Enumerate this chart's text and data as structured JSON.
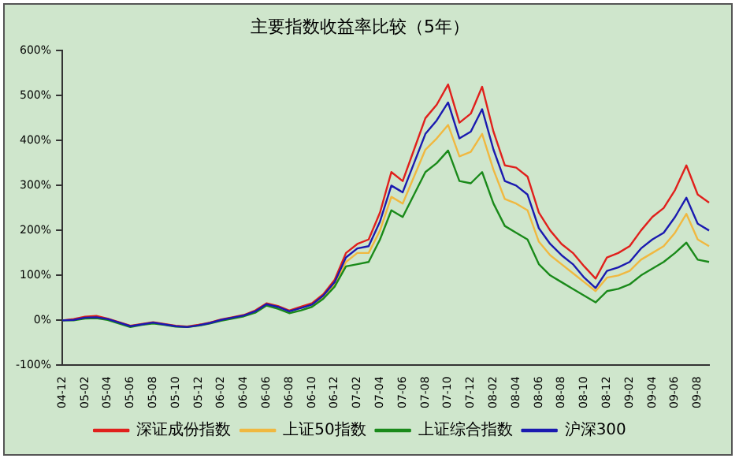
{
  "chart_data": {
    "type": "line",
    "title": "主要指数收益率比较（5年）",
    "categories": [
      "04-12",
      null,
      "05-02",
      null,
      "05-04",
      null,
      "05-06",
      null,
      "05-08",
      null,
      "05-10",
      null,
      "05-12",
      null,
      "06-02",
      null,
      "06-04",
      null,
      "06-06",
      null,
      "06-08",
      null,
      "06-10",
      null,
      "06-12",
      null,
      "07-02",
      null,
      "07-04",
      null,
      "07-06",
      null,
      "07-08",
      null,
      "07-10",
      null,
      "07-12",
      null,
      "08-02",
      null,
      "08-04",
      null,
      "08-06",
      null,
      "08-08",
      null,
      "08-10",
      null,
      "08-12",
      null,
      "09-02",
      null,
      "09-04",
      null,
      "09-06",
      null,
      "09-08",
      null
    ],
    "series": [
      {
        "name": "深证成份指数",
        "color": "#e0201c",
        "values": [
          0,
          3,
          8,
          10,
          4,
          -4,
          -12,
          -8,
          -4,
          -8,
          -12,
          -14,
          -10,
          -5,
          2,
          7,
          12,
          22,
          38,
          32,
          22,
          30,
          38,
          58,
          90,
          150,
          170,
          180,
          240,
          330,
          310,
          380,
          450,
          480,
          525,
          440,
          460,
          520,
          420,
          345,
          340,
          320,
          240,
          200,
          170,
          150,
          120,
          93,
          140,
          150,
          165,
          200,
          230,
          250,
          290,
          345,
          280,
          262
        ]
      },
      {
        "name": "上证50指数",
        "color": "#f0b840",
        "values": [
          null,
          null,
          null,
          null,
          null,
          null,
          null,
          null,
          null,
          null,
          null,
          null,
          null,
          null,
          null,
          null,
          null,
          null,
          null,
          null,
          null,
          null,
          32,
          50,
          80,
          130,
          150,
          150,
          200,
          275,
          260,
          320,
          380,
          405,
          435,
          365,
          375,
          415,
          335,
          270,
          260,
          245,
          175,
          145,
          125,
          105,
          85,
          65,
          95,
          100,
          110,
          135,
          150,
          165,
          195,
          237,
          180,
          165
        ]
      },
      {
        "name": "上证综合指数",
        "color": "#1a8a1a",
        "values": [
          0,
          0,
          4,
          5,
          1,
          -7,
          -15,
          -10,
          -7,
          -10,
          -14,
          -15,
          -12,
          -7,
          -1,
          4,
          9,
          17,
          33,
          26,
          16,
          22,
          30,
          48,
          75,
          120,
          125,
          130,
          180,
          245,
          230,
          280,
          330,
          350,
          378,
          310,
          305,
          330,
          260,
          210,
          195,
          180,
          125,
          100,
          85,
          70,
          55,
          40,
          65,
          70,
          80,
          100,
          115,
          130,
          150,
          173,
          135,
          130
        ]
      },
      {
        "name": "沪深300",
        "color": "#1a1ab0",
        "values": [
          0,
          1,
          6,
          7,
          3,
          -5,
          -13,
          -9,
          -5,
          -9,
          -13,
          -15,
          -11,
          -6,
          1,
          6,
          11,
          20,
          36,
          30,
          20,
          27,
          35,
          55,
          85,
          140,
          160,
          165,
          220,
          300,
          285,
          350,
          415,
          445,
          485,
          405,
          420,
          470,
          380,
          310,
          300,
          280,
          205,
          170,
          145,
          125,
          95,
          72,
          110,
          118,
          130,
          160,
          180,
          195,
          230,
          273,
          215,
          200
        ]
      }
    ],
    "ylim": [
      -100,
      600
    ],
    "yticks": [
      {
        "value": -100,
        "label": "-100%"
      },
      {
        "value": 0,
        "label": "0%"
      },
      {
        "value": 100,
        "label": "100%"
      },
      {
        "value": 200,
        "label": "200%"
      },
      {
        "value": 300,
        "label": "300%"
      },
      {
        "value": 400,
        "label": "400%"
      },
      {
        "value": 500,
        "label": "500%"
      },
      {
        "value": 600,
        "label": "600%"
      }
    ],
    "legend": "bottom",
    "grid": false,
    "marker": "none",
    "line_style": "solid"
  }
}
